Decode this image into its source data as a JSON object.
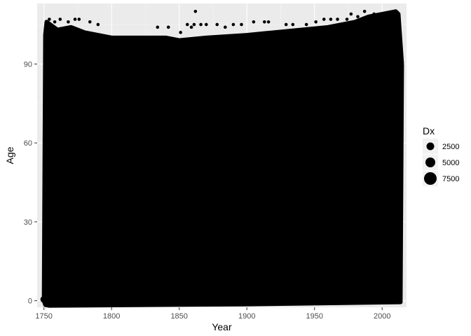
{
  "chart_data": {
    "type": "scatter",
    "title": "",
    "xlabel": "Year",
    "ylabel": "Age",
    "xlim": [
      1745,
      2018
    ],
    "ylim": [
      -2.5,
      113
    ],
    "x_ticks": [
      1750,
      1800,
      1850,
      1900,
      1950,
      2000
    ],
    "y_ticks": [
      0,
      30,
      60,
      90
    ],
    "grid": true,
    "panel_color": "#ebebeb",
    "point_color": "#000000",
    "size_legend": {
      "title": "Dx",
      "position": "right",
      "entries": [
        {
          "label": "2500",
          "value": 2500
        },
        {
          "label": "5000",
          "value": 5000
        },
        {
          "label": "7500",
          "value": 7500
        }
      ]
    },
    "filled_region": {
      "x_start": 1750,
      "x_end": 2012,
      "y_min": 0,
      "top_by_year": [
        {
          "year": 1750,
          "age": 0
        },
        {
          "year": 1751,
          "age": 101
        },
        {
          "year": 1752,
          "age": 106
        },
        {
          "year": 1760,
          "age": 103
        },
        {
          "year": 1770,
          "age": 104
        },
        {
          "year": 1780,
          "age": 102
        },
        {
          "year": 1790,
          "age": 101
        },
        {
          "year": 1800,
          "age": 100
        },
        {
          "year": 1820,
          "age": 100
        },
        {
          "year": 1840,
          "age": 100
        },
        {
          "year": 1850,
          "age": 99
        },
        {
          "year": 1870,
          "age": 100
        },
        {
          "year": 1900,
          "age": 101
        },
        {
          "year": 1920,
          "age": 102
        },
        {
          "year": 1940,
          "age": 103
        },
        {
          "year": 1960,
          "age": 104
        },
        {
          "year": 1980,
          "age": 106
        },
        {
          "year": 1990,
          "age": 108
        },
        {
          "year": 2000,
          "age": 109
        },
        {
          "year": 2010,
          "age": 110
        },
        {
          "year": 2012,
          "age": 109
        }
      ]
    },
    "outlier_points": [
      {
        "year": 1754,
        "age": 107
      },
      {
        "year": 1758,
        "age": 106
      },
      {
        "year": 1762,
        "age": 107
      },
      {
        "year": 1768,
        "age": 106
      },
      {
        "year": 1773,
        "age": 107
      },
      {
        "year": 1776,
        "age": 107
      },
      {
        "year": 1784,
        "age": 106
      },
      {
        "year": 1790,
        "age": 105
      },
      {
        "year": 1834,
        "age": 104
      },
      {
        "year": 1842,
        "age": 104
      },
      {
        "year": 1851,
        "age": 102
      },
      {
        "year": 1856,
        "age": 105
      },
      {
        "year": 1859,
        "age": 104
      },
      {
        "year": 1861,
        "age": 105
      },
      {
        "year": 1862,
        "age": 110
      },
      {
        "year": 1866,
        "age": 105
      },
      {
        "year": 1870,
        "age": 105
      },
      {
        "year": 1878,
        "age": 105
      },
      {
        "year": 1884,
        "age": 104
      },
      {
        "year": 1890,
        "age": 105
      },
      {
        "year": 1896,
        "age": 105
      },
      {
        "year": 1905,
        "age": 106
      },
      {
        "year": 1913,
        "age": 106
      },
      {
        "year": 1916,
        "age": 106
      },
      {
        "year": 1929,
        "age": 105
      },
      {
        "year": 1934,
        "age": 105
      },
      {
        "year": 1944,
        "age": 105
      },
      {
        "year": 1951,
        "age": 106
      },
      {
        "year": 1957,
        "age": 107
      },
      {
        "year": 1962,
        "age": 107
      },
      {
        "year": 1967,
        "age": 107
      },
      {
        "year": 1974,
        "age": 107
      },
      {
        "year": 1977,
        "age": 109
      },
      {
        "year": 1982,
        "age": 108
      },
      {
        "year": 1987,
        "age": 110
      },
      {
        "year": 1994,
        "age": 109
      }
    ]
  }
}
